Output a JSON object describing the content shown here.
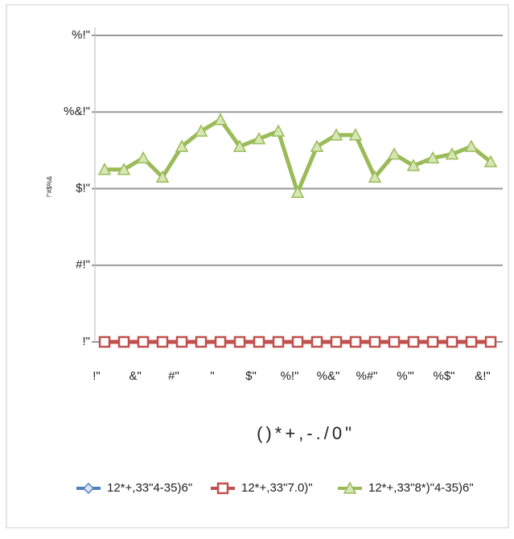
{
  "chart_data": {
    "type": "line",
    "title": "()*+,-./0\"",
    "y_label": "!\"#$%&",
    "categories": [
      "!\"",
      null,
      "&\"",
      null,
      "#\"",
      null,
      "\"",
      null,
      "$\"",
      null,
      "%!\"",
      null,
      "%&\"",
      null,
      "%#\"",
      null,
      "%'\"",
      null,
      "%$\"",
      null,
      "&!\""
    ],
    "series": [
      {
        "name": "12*+,33\"4-35)6\"",
        "color": "#4f81bd",
        "marker": "diamond",
        "values": [
          0,
          0,
          0,
          0,
          0,
          0,
          0,
          0,
          0,
          0,
          0,
          0,
          0,
          0,
          0,
          0,
          0,
          0,
          0,
          0,
          0
        ]
      },
      {
        "name": "12*+,33\"7.0)\"",
        "color": "#c0504d",
        "marker": "square",
        "values": [
          0,
          0,
          0,
          0,
          0,
          0,
          0,
          0,
          0,
          0,
          0,
          0,
          0,
          0,
          0,
          0,
          0,
          0,
          0,
          0,
          0
        ]
      },
      {
        "name": "12*+,33\"8*)\"4-35)6\"",
        "color": "#9bbb59",
        "marker": "triangle",
        "values": [
          45,
          45,
          48,
          43,
          51,
          55,
          58,
          51,
          53,
          55,
          39,
          51,
          54,
          54,
          43,
          49,
          46,
          48,
          49,
          51,
          47
        ]
      }
    ],
    "ylim": [
      0,
      80
    ],
    "yticks": [
      {
        "value": 0,
        "label": "!\""
      },
      {
        "value": 20,
        "label": "#!\""
      },
      {
        "value": 40,
        "label": "$!\""
      },
      {
        "value": 60,
        "label": "%&!\""
      },
      {
        "value": 80,
        "label": "%!\""
      }
    ],
    "grid": true
  }
}
